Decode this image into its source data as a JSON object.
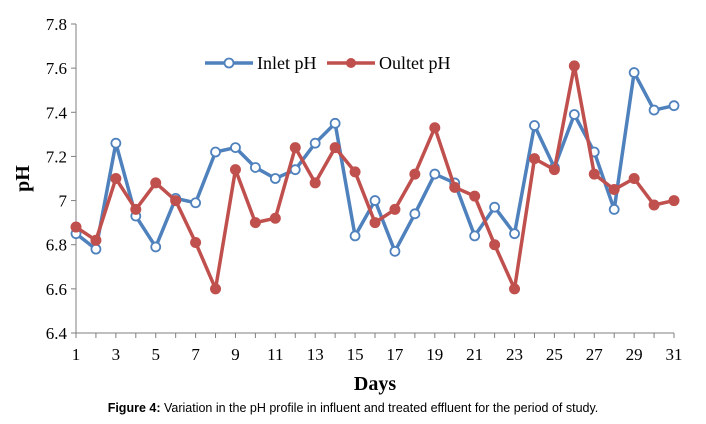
{
  "chart_data": {
    "type": "line",
    "title": "",
    "xlabel": "Days",
    "ylabel": "pH",
    "xlim": [
      1,
      31
    ],
    "ylim": [
      6.4,
      7.8
    ],
    "x_ticks": [
      1,
      3,
      5,
      7,
      9,
      11,
      13,
      15,
      17,
      19,
      21,
      23,
      25,
      27,
      29,
      31
    ],
    "y_ticks": [
      6.4,
      6.6,
      6.8,
      7,
      7.2,
      7.4,
      7.6,
      7.8
    ],
    "y_tick_labels": [
      "6.4",
      "6.6",
      "6.8",
      "7",
      "7.2",
      "7.4",
      "7.6",
      "7.8"
    ],
    "grid": false,
    "legend_position": "top",
    "x": [
      1,
      2,
      3,
      4,
      5,
      6,
      7,
      8,
      9,
      10,
      11,
      12,
      13,
      14,
      15,
      16,
      17,
      18,
      19,
      20,
      21,
      22,
      23,
      24,
      25,
      26,
      27,
      28,
      29,
      30,
      31
    ],
    "series": [
      {
        "name": "Inlet pH",
        "color": "#4f81bd",
        "marker": "hollow-circle",
        "values": [
          6.85,
          6.78,
          7.26,
          6.93,
          6.79,
          7.01,
          6.99,
          7.22,
          7.24,
          7.15,
          7.1,
          7.14,
          7.26,
          7.35,
          6.84,
          7.0,
          6.77,
          6.94,
          7.12,
          7.08,
          6.84,
          6.97,
          6.85,
          7.34,
          7.15,
          7.39,
          7.22,
          6.96,
          7.58,
          7.41,
          7.43
        ]
      },
      {
        "name": "Oultet pH",
        "color": "#c0504d",
        "marker": "filled-circle",
        "values": [
          6.88,
          6.82,
          7.1,
          6.96,
          7.08,
          7.0,
          6.81,
          6.6,
          7.14,
          6.9,
          6.92,
          7.24,
          7.08,
          7.24,
          7.13,
          6.9,
          6.96,
          7.12,
          7.33,
          7.06,
          7.02,
          6.8,
          6.6,
          7.19,
          7.14,
          7.61,
          7.12,
          7.05,
          7.1,
          6.98,
          7.0
        ]
      }
    ]
  },
  "caption": {
    "label": "Figure 4:",
    "text": " Variation in the pH profile in influent and treated effluent for the period of study."
  }
}
